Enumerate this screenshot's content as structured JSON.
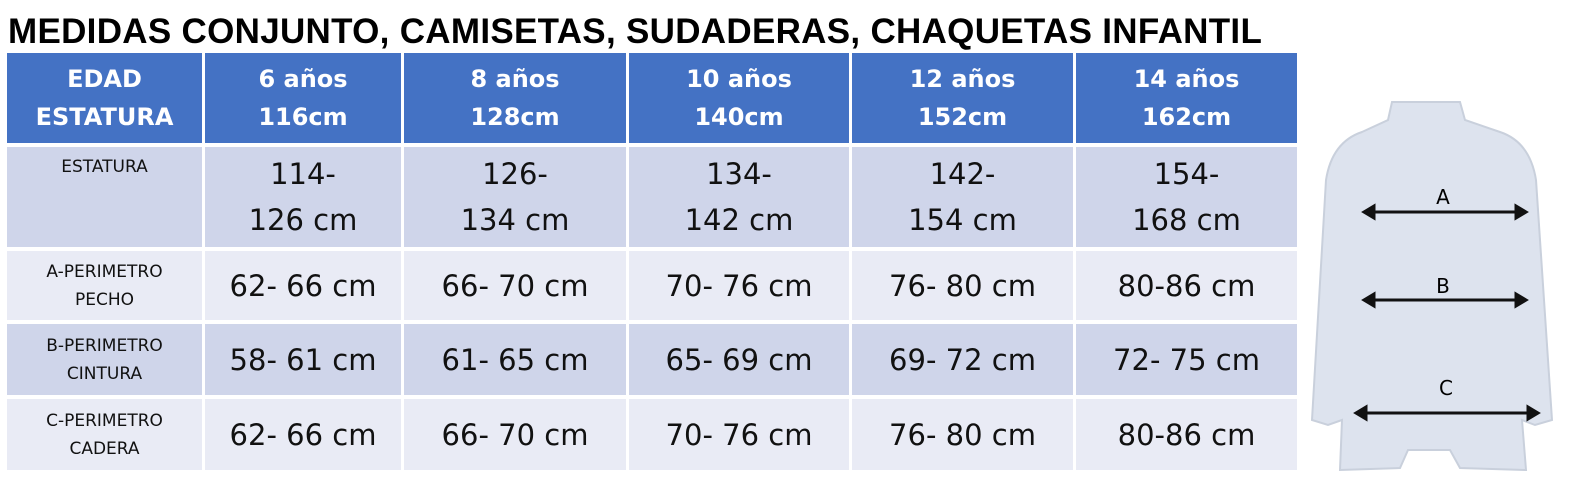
{
  "title": "MEDIDAS CONJUNTO, CAMISETAS, SUDADERAS, CHAQUETAS INFANTIL",
  "table": {
    "header": [
      [
        "EDAD",
        "ESTATURA"
      ],
      [
        "6 años",
        "116cm"
      ],
      [
        "8 años",
        "128cm"
      ],
      [
        "10 años",
        "140cm"
      ],
      [
        "12 años",
        "152cm"
      ],
      [
        "14 años",
        "162cm"
      ]
    ],
    "rows": [
      [
        [
          "ESTATURA"
        ],
        [
          "114-",
          "126 cm"
        ],
        [
          "126-",
          "134 cm"
        ],
        [
          "134-",
          "142 cm"
        ],
        [
          "142-",
          "154 cm"
        ],
        [
          "154-",
          "168 cm"
        ]
      ],
      [
        [
          "A-PERIMETRO",
          "PECHO"
        ],
        [
          "62- 66 cm"
        ],
        [
          "66- 70 cm"
        ],
        [
          "70- 76 cm"
        ],
        [
          "76- 80 cm"
        ],
        [
          "80-86 cm"
        ]
      ],
      [
        [
          "B-PERIMETRO",
          "CINTURA"
        ],
        [
          "58- 61 cm"
        ],
        [
          "61- 65 cm"
        ],
        [
          "65- 69 cm"
        ],
        [
          "69- 72 cm"
        ],
        [
          "72- 75 cm"
        ]
      ],
      [
        [
          "C-PERIMETRO",
          "CADERA"
        ],
        [
          "62- 66 cm"
        ],
        [
          "66- 70 cm"
        ],
        [
          "70- 76 cm"
        ],
        [
          "76- 80 cm"
        ],
        [
          "80-86 cm"
        ]
      ]
    ]
  },
  "figure": {
    "labels": [
      "A",
      "B",
      "C"
    ]
  }
}
